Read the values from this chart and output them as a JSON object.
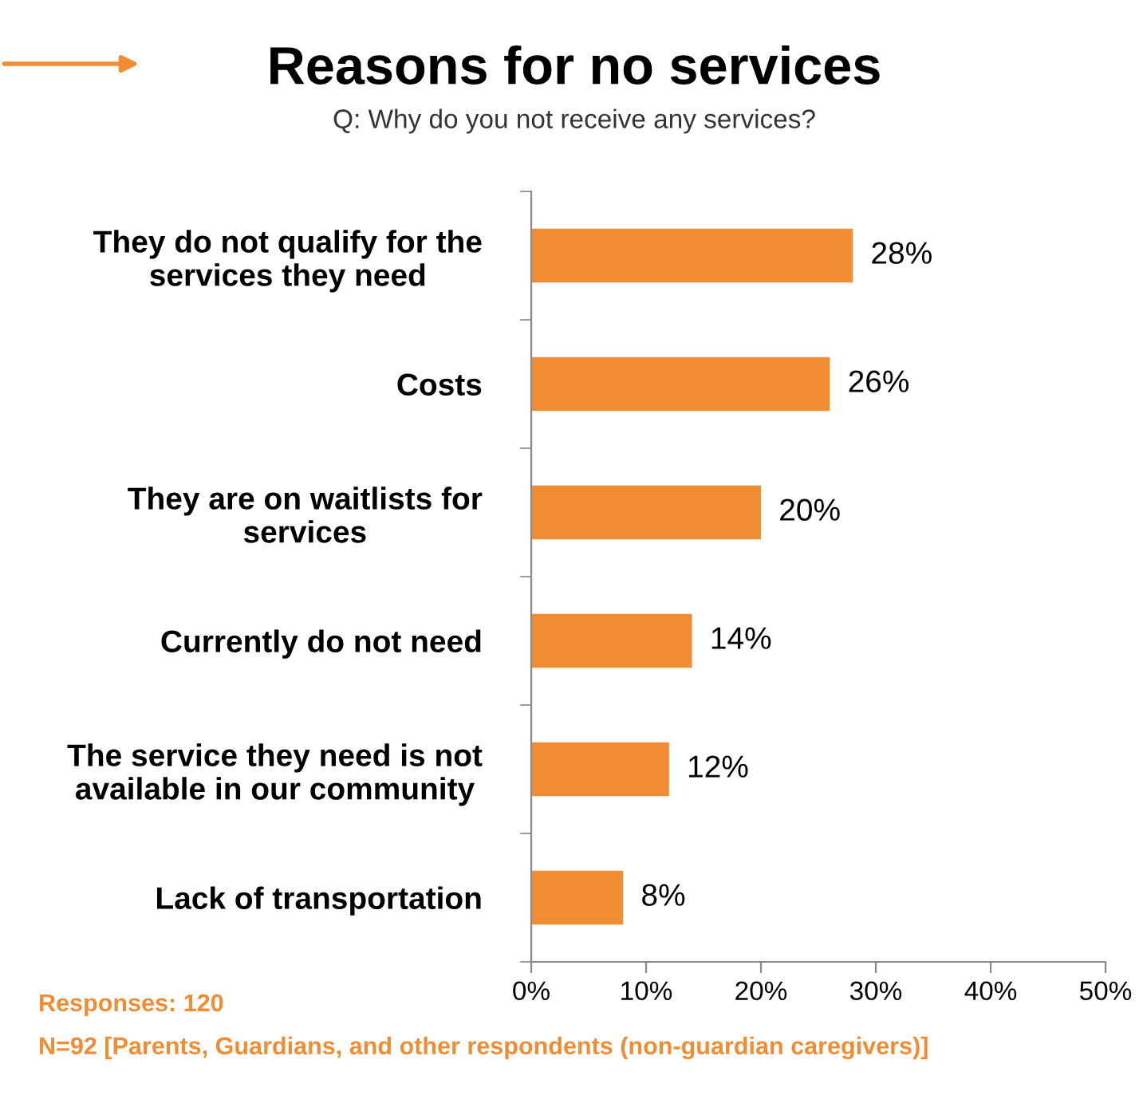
{
  "chart_data": {
    "type": "bar",
    "orientation": "horizontal",
    "title": "Reasons for no services",
    "subtitle": "Q: Why do you not receive any services?",
    "categories": [
      "They do not qualify for the\nservices they need",
      "Costs",
      "They are on waitlists for\nservices",
      "Currently do not need",
      "The service they need is not\navailable in our community",
      "Lack of transportation"
    ],
    "values": [
      28,
      26,
      20,
      14,
      12,
      8
    ],
    "value_labels": [
      "28%",
      "26%",
      "20%",
      "14%",
      "12%",
      "8%"
    ],
    "color": "#f08c32",
    "xlim": [
      0,
      50
    ],
    "xticks": [
      {
        "value": 0,
        "label": "0%"
      },
      {
        "value": 10,
        "label": "10%"
      },
      {
        "value": 20,
        "label": "20%"
      },
      {
        "value": 30,
        "label": "30%"
      },
      {
        "value": 40,
        "label": "40%"
      },
      {
        "value": 50,
        "label": "50%"
      }
    ],
    "grid": false,
    "legend": false,
    "annotations": [
      "Responses: 120",
      "N=92 [Parents, Guardians, and other respondents (non-guardian caregivers)]"
    ]
  }
}
